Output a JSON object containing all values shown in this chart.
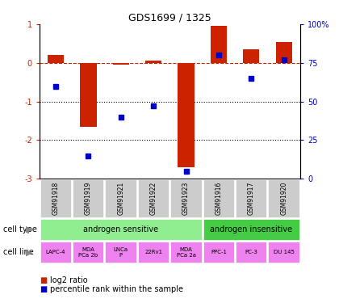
{
  "title": "GDS1699 / 1325",
  "samples": [
    "GSM91918",
    "GSM91919",
    "GSM91921",
    "GSM91922",
    "GSM91923",
    "GSM91916",
    "GSM91917",
    "GSM91920"
  ],
  "log2_ratio": [
    0.2,
    -1.65,
    -0.05,
    0.05,
    -2.7,
    0.95,
    0.35,
    0.55
  ],
  "percentile_rank": [
    60,
    15,
    40,
    47,
    5,
    80,
    65,
    77
  ],
  "ylim_left": [
    -3,
    1
  ],
  "ylim_right": [
    0,
    100
  ],
  "yticks_left": [
    -3,
    -2,
    -1,
    0,
    1
  ],
  "yticks_right": [
    0,
    25,
    50,
    75,
    100
  ],
  "cell_type_groups": [
    {
      "label": "androgen sensitive",
      "start": 0,
      "end": 4,
      "color": "#90EE90"
    },
    {
      "label": "androgen insensitive",
      "start": 5,
      "end": 7,
      "color": "#44CC44"
    }
  ],
  "cell_lines": [
    "LAPC-4",
    "MDA\nPCa 2b",
    "LNCa\nP",
    "22Rv1",
    "MDA\nPCa 2a",
    "PPC-1",
    "PC-3",
    "DU 145"
  ],
  "cell_line_color": "#EE82EE",
  "gsm_box_color": "#CCCCCC",
  "bar_color": "#CC2200",
  "marker_color": "#0000CC",
  "dashed_line_color": "#CC2200",
  "dotted_line_color": "#000000",
  "row_label_color": "#888888",
  "legend_items": [
    {
      "label": "log2 ratio",
      "color": "#CC2200"
    },
    {
      "label": "percentile rank within the sample",
      "color": "#0000CC"
    }
  ]
}
